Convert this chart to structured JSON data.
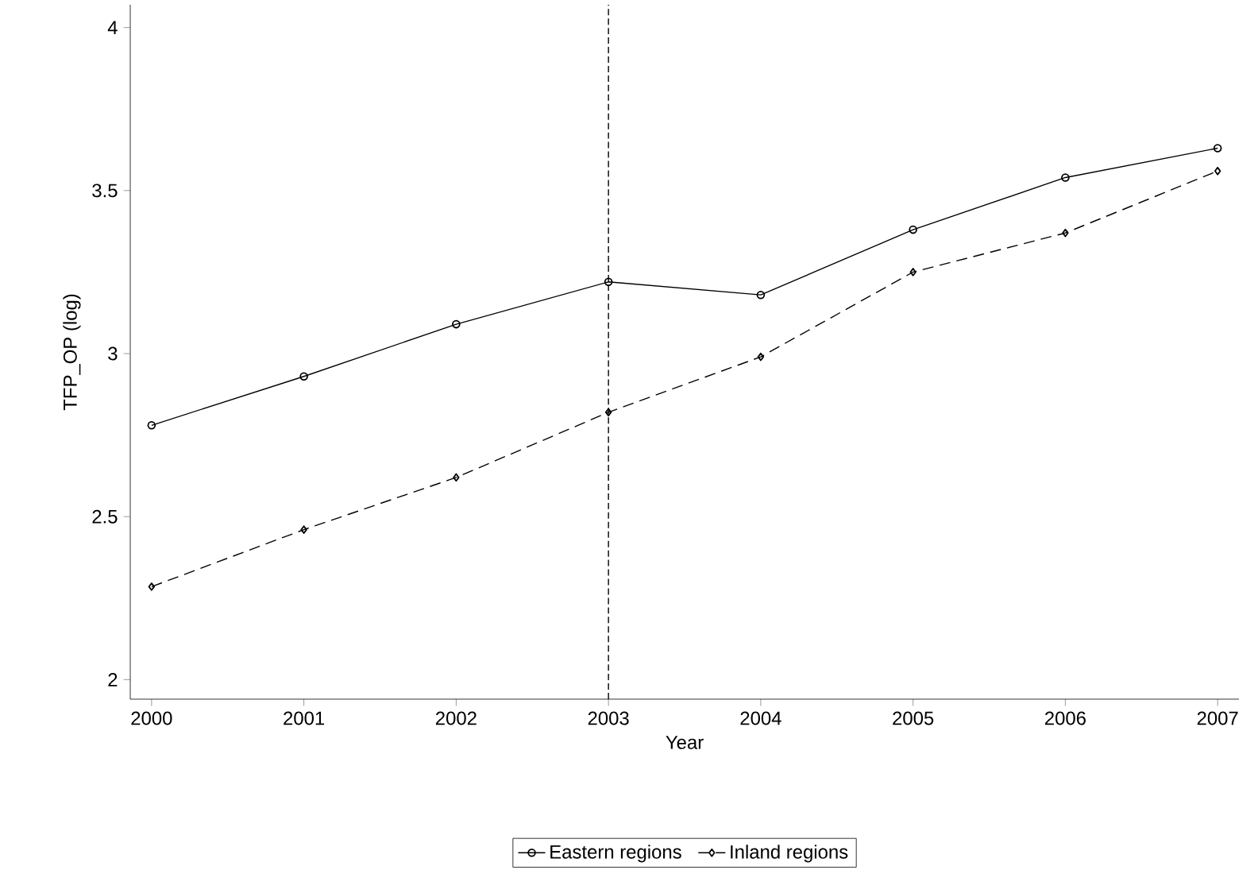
{
  "chart_data": {
    "type": "line",
    "xlabel": "Year",
    "ylabel": "TFP_OP (log)",
    "x": [
      2000,
      2001,
      2002,
      2003,
      2004,
      2005,
      2006,
      2007
    ],
    "series": [
      {
        "name": "Eastern regions",
        "color": "#000000",
        "marker": "circle",
        "line_style": "solid",
        "values": [
          2.78,
          2.93,
          3.09,
          3.22,
          3.18,
          3.38,
          3.54,
          3.63
        ]
      },
      {
        "name": "Inland regions",
        "color": "#000000",
        "marker": "diamond",
        "line_style": "dashed",
        "values": [
          2.285,
          2.46,
          2.62,
          2.82,
          2.99,
          3.25,
          3.37,
          3.56
        ]
      }
    ],
    "xlim": [
      1999.86,
      2007.14
    ],
    "ylim": [
      1.94,
      4.07
    ],
    "xticks": [
      2000,
      2001,
      2002,
      2003,
      2004,
      2005,
      2006,
      2007
    ],
    "yticks": [
      2,
      2.5,
      3,
      3.5,
      4
    ],
    "ref_lines": [
      {
        "axis": "x",
        "value": 2003,
        "color": "#000000",
        "line_style": "dashed"
      }
    ],
    "grid": false,
    "legend": "bottom"
  }
}
